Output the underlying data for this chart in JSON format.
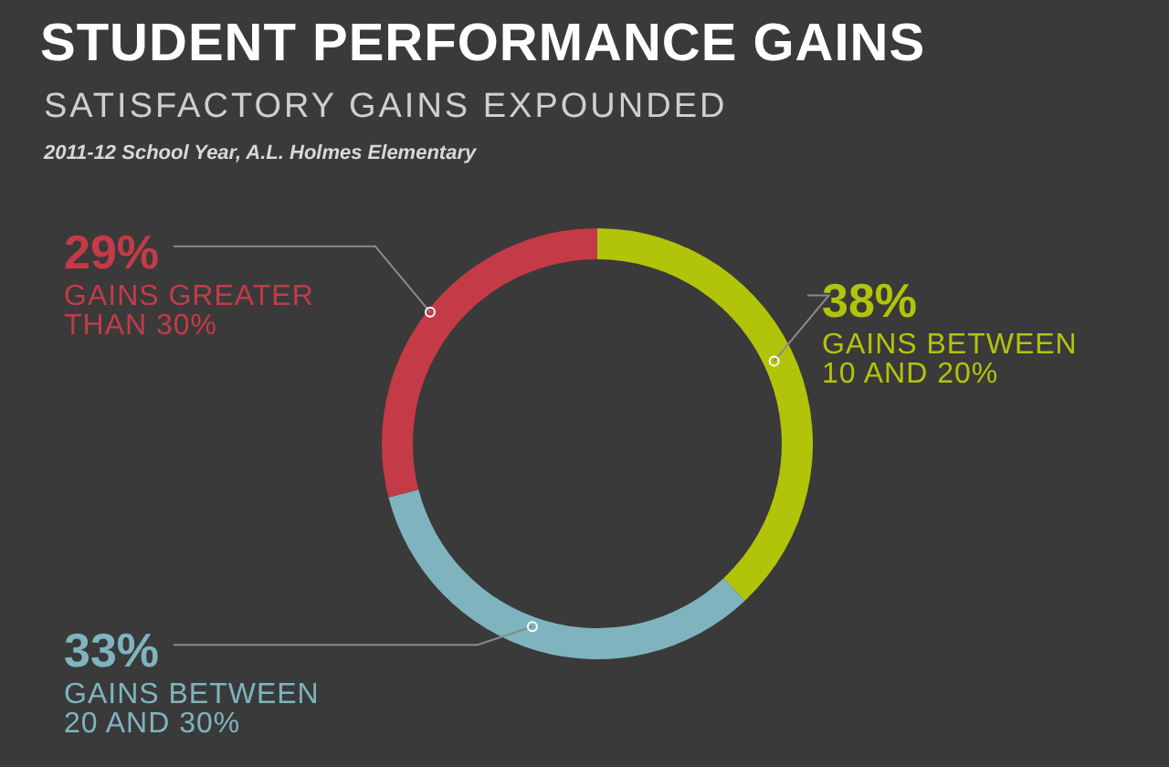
{
  "chart_data": {
    "type": "donut",
    "title": "STUDENT PERFORMANCE GAINS",
    "subtitle": "SATISFACTORY GAINS EXPOUNDED",
    "annotations": [
      "2011-12 School Year, A.L. Holmes Elementary"
    ],
    "categories": [
      "GAINS BETWEEN 10 AND 20%",
      "GAINS BETWEEN 20 AND 30%",
      "GAINS GREATER THAN 30%"
    ],
    "values": [
      38,
      33,
      29
    ],
    "colors": [
      "#b2c40a",
      "#7fb4bf",
      "#c53a47"
    ],
    "value_labels": [
      "38%",
      "33%",
      "29%"
    ]
  }
}
